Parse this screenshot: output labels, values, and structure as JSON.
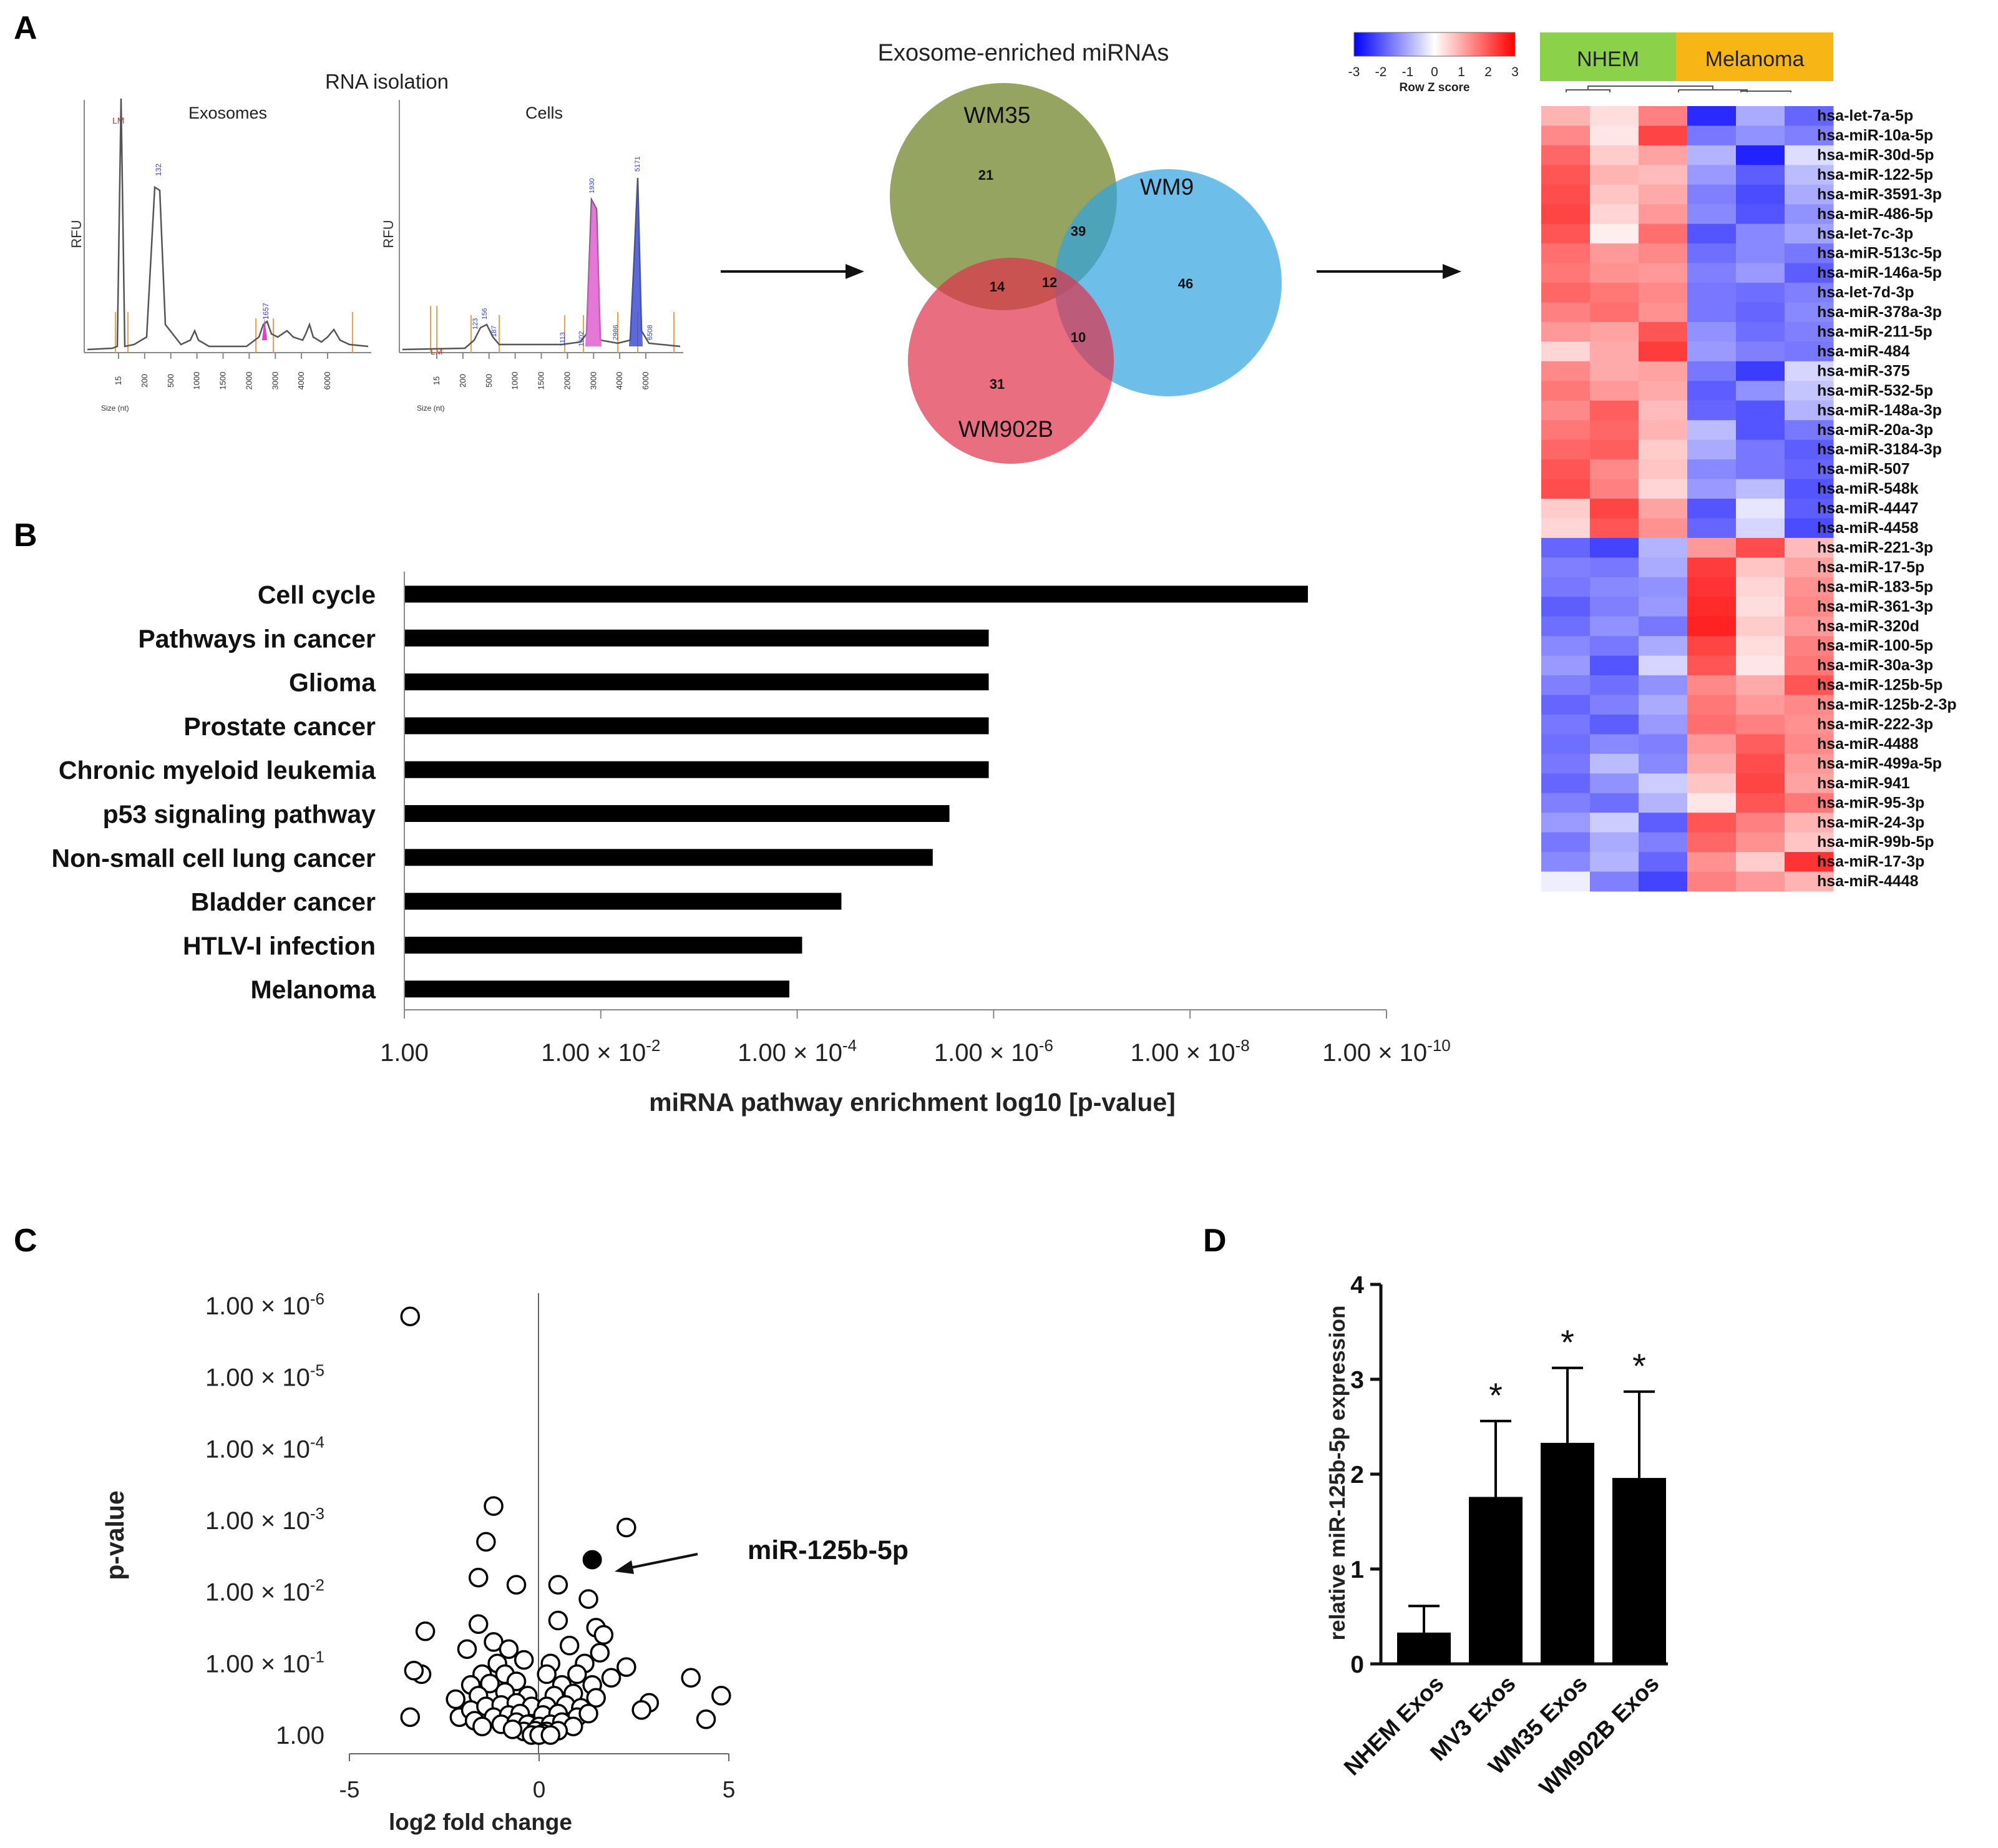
{
  "panel_labels": {
    "a": "A",
    "b": "B",
    "c": "C",
    "d": "D"
  },
  "panel_a": {
    "rna_title": "RNA isolation",
    "exosomes": {
      "title": "Exosomes",
      "ylabel": "RFU",
      "xlabel": "Size (nt)",
      "ladder_label": "LM",
      "x_ticks": [
        "15",
        "200",
        "500",
        "1000",
        "1500",
        "2000",
        "3000",
        "4000",
        "6000"
      ],
      "peak_labels": [
        "132",
        "1657"
      ]
    },
    "cells": {
      "title": "Cells",
      "ylabel": "RFU",
      "xlabel": "Size (nt)",
      "ladder_label": "LM",
      "x_ticks": [
        "15",
        "200",
        "500",
        "1000",
        "1500",
        "2000",
        "3000",
        "4000",
        "6000"
      ],
      "peak_labels": [
        "123",
        "156",
        "187",
        "1113",
        "1602",
        "1930",
        "2986",
        "5171",
        "6508"
      ]
    },
    "venn": {
      "title": "Exosome-enriched miRNAs",
      "sets": [
        {
          "name": "WM35",
          "color": "#7a8f3a"
        },
        {
          "name": "WM9",
          "color": "#2fa3e0"
        },
        {
          "name": "WM902B",
          "color": "#e0304a"
        }
      ],
      "counts": {
        "wm35_only": "21",
        "wm9_only": "46",
        "wm902b_only": "31",
        "wm35_wm9": "39",
        "wm35_wm902b": "14",
        "all": "12",
        "wm9_wm902b": "10"
      }
    },
    "heatmap": {
      "legend_title": "Row Z score",
      "legend_ticks": [
        "-3",
        "-2",
        "-1",
        "0",
        "1",
        "2",
        "3"
      ],
      "groups": [
        {
          "name": "NHEM",
          "color": "#8cd14a"
        },
        {
          "name": "Melanoma",
          "color": "#f7b516"
        }
      ],
      "rows": [
        {
          "name": "hsa-let-7a-5p",
          "z": [
            0.9,
            0.4,
            1.5,
            -2.5,
            -1.0,
            -1.8
          ]
        },
        {
          "name": "hsa-miR-10a-5p",
          "z": [
            1.4,
            0.3,
            2.2,
            -1.6,
            -1.3,
            -1.5
          ]
        },
        {
          "name": "hsa-miR-30d-5p",
          "z": [
            1.8,
            0.6,
            1.1,
            -0.9,
            -2.6,
            -0.4
          ]
        },
        {
          "name": "hsa-miR-122-5p",
          "z": [
            2.0,
            0.9,
            0.8,
            -1.2,
            -1.9,
            -0.8
          ]
        },
        {
          "name": "hsa-miR-3591-3p",
          "z": [
            2.1,
            0.7,
            1.0,
            -1.5,
            -2.1,
            -1.0
          ]
        },
        {
          "name": "hsa-miR-486-5p",
          "z": [
            2.2,
            0.5,
            1.2,
            -1.4,
            -2.0,
            -1.3
          ]
        },
        {
          "name": "hsa-let-7c-3p",
          "z": [
            2.0,
            0.2,
            1.7,
            -2.0,
            -1.4,
            -1.1
          ]
        },
        {
          "name": "hsa-miR-513c-5p",
          "z": [
            1.7,
            1.2,
            1.4,
            -1.7,
            -1.4,
            -1.6
          ]
        },
        {
          "name": "hsa-miR-146a-5p",
          "z": [
            1.6,
            1.3,
            1.2,
            -1.5,
            -1.2,
            -1.9
          ]
        },
        {
          "name": "hsa-let-7d-3p",
          "z": [
            1.8,
            1.6,
            1.4,
            -1.6,
            -1.7,
            -1.5
          ]
        },
        {
          "name": "hsa-miR-378a-3p",
          "z": [
            1.5,
            1.7,
            1.3,
            -1.6,
            -1.8,
            -1.4
          ]
        },
        {
          "name": "hsa-miR-211-5p",
          "z": [
            1.2,
            1.1,
            2.0,
            -1.3,
            -1.7,
            -1.5
          ]
        },
        {
          "name": "hsa-miR-484",
          "z": [
            0.5,
            1.0,
            2.3,
            -1.2,
            -1.5,
            -1.6
          ]
        },
        {
          "name": "hsa-miR-375",
          "z": [
            1.4,
            1.0,
            1.1,
            -1.6,
            -2.3,
            -0.5
          ]
        },
        {
          "name": "hsa-miR-532-5p",
          "z": [
            1.6,
            1.2,
            1.0,
            -1.9,
            -1.3,
            -0.7
          ]
        },
        {
          "name": "hsa-miR-148a-3p",
          "z": [
            1.4,
            1.9,
            0.8,
            -1.8,
            -2.0,
            -0.9
          ]
        },
        {
          "name": "hsa-miR-20a-3p",
          "z": [
            1.6,
            1.8,
            0.9,
            -0.8,
            -2.0,
            -1.6
          ]
        },
        {
          "name": "hsa-miR-3184-3p",
          "z": [
            1.8,
            1.9,
            0.6,
            -1.0,
            -1.6,
            -1.9
          ]
        },
        {
          "name": "hsa-miR-507",
          "z": [
            2.0,
            1.4,
            0.7,
            -1.4,
            -1.6,
            -1.8
          ]
        },
        {
          "name": "hsa-miR-548k",
          "z": [
            2.1,
            1.5,
            0.5,
            -1.2,
            -0.8,
            -2.0
          ]
        },
        {
          "name": "hsa-miR-4447",
          "z": [
            0.6,
            2.2,
            1.1,
            -2.0,
            -0.3,
            -1.9
          ]
        },
        {
          "name": "hsa-miR-4458",
          "z": [
            0.5,
            2.0,
            1.3,
            -1.8,
            -0.5,
            -2.1
          ]
        },
        {
          "name": "hsa-miR-221-3p",
          "z": [
            -1.8,
            -2.2,
            -0.9,
            1.2,
            2.1,
            0.8
          ]
        },
        {
          "name": "hsa-miR-17-5p",
          "z": [
            -1.5,
            -1.6,
            -1.0,
            2.3,
            0.7,
            1.1
          ]
        },
        {
          "name": "hsa-miR-183-5p",
          "z": [
            -1.6,
            -1.4,
            -1.3,
            2.4,
            0.5,
            1.3
          ]
        },
        {
          "name": "hsa-miR-361-3p",
          "z": [
            -1.9,
            -1.5,
            -1.2,
            2.5,
            0.4,
            1.4
          ]
        },
        {
          "name": "hsa-miR-320d",
          "z": [
            -1.7,
            -1.3,
            -1.6,
            2.6,
            0.6,
            1.2
          ]
        },
        {
          "name": "hsa-miR-100-5p",
          "z": [
            -1.4,
            -1.6,
            -1.0,
            2.2,
            0.4,
            1.5
          ]
        },
        {
          "name": "hsa-miR-30a-3p",
          "z": [
            -1.2,
            -2.0,
            -0.5,
            2.0,
            0.3,
            1.6
          ]
        },
        {
          "name": "hsa-miR-125b-5p",
          "z": [
            -1.5,
            -1.7,
            -1.3,
            1.4,
            1.0,
            2.0
          ]
        },
        {
          "name": "hsa-miR-125b-2-3p",
          "z": [
            -1.8,
            -1.5,
            -1.0,
            1.6,
            1.2,
            1.4
          ]
        },
        {
          "name": "hsa-miR-222-3p",
          "z": [
            -1.6,
            -1.9,
            -1.2,
            1.7,
            1.5,
            1.3
          ]
        },
        {
          "name": "hsa-miR-4488",
          "z": [
            -1.7,
            -1.4,
            -1.5,
            1.2,
            1.9,
            1.4
          ]
        },
        {
          "name": "hsa-miR-499a-5p",
          "z": [
            -1.6,
            -0.8,
            -1.4,
            1.0,
            2.1,
            1.2
          ]
        },
        {
          "name": "hsa-miR-941",
          "z": [
            -1.8,
            -1.3,
            -0.6,
            0.7,
            2.2,
            1.1
          ]
        },
        {
          "name": "hsa-miR-95-3p",
          "z": [
            -1.5,
            -1.7,
            -0.9,
            0.3,
            2.0,
            1.6
          ]
        },
        {
          "name": "hsa-miR-24-3p",
          "z": [
            -1.2,
            -0.6,
            -1.9,
            2.0,
            1.5,
            0.9
          ]
        },
        {
          "name": "hsa-miR-99b-5p",
          "z": [
            -1.6,
            -1.0,
            -1.5,
            1.8,
            1.3,
            0.7
          ]
        },
        {
          "name": "hsa-miR-17-3p",
          "z": [
            -1.4,
            -0.9,
            -1.8,
            1.3,
            0.6,
            2.4
          ]
        },
        {
          "name": "hsa-miR-4448",
          "z": [
            -0.2,
            -1.5,
            -2.2,
            1.5,
            1.2,
            0.9
          ]
        }
      ]
    }
  },
  "chart_data": [
    {
      "id": "B",
      "type": "bar",
      "orientation": "horizontal",
      "xscale": "log",
      "xlabel": "miRNA pathway enrichment log10 [p-value]",
      "x_ticks": [
        {
          "base": "1.00",
          "exp": ""
        },
        {
          "base": "1.00 × 10",
          "exp": "-2"
        },
        {
          "base": "1.00 × 10",
          "exp": "-4"
        },
        {
          "base": "1.00 × 10",
          "exp": "-6"
        },
        {
          "base": "1.00 × 10",
          "exp": "-8"
        },
        {
          "base": "1.00 × 10",
          "exp": "-10"
        }
      ],
      "xlim": [
        0,
        10
      ],
      "categories": [
        "Cell cycle",
        "Pathways in cancer",
        "Glioma",
        "Prostate cancer",
        "Chronic myeloid leukemia",
        "p53 signaling pathway",
        "Non-small cell lung cancer",
        "Bladder cancer",
        "HTLV-I infection",
        "Melanoma"
      ],
      "values": [
        9.2,
        5.95,
        5.95,
        5.95,
        5.95,
        5.55,
        5.38,
        4.45,
        4.05,
        3.92
      ],
      "value_unit": "-log10(p-value)"
    },
    {
      "id": "C",
      "type": "scatter",
      "xlabel": "log2 fold change",
      "ylabel": "p-value",
      "xlim": [
        -5,
        5
      ],
      "x_ticks": [
        "-5",
        "0",
        "5"
      ],
      "y_ticks": [
        {
          "base": "1.00",
          "exp": ""
        },
        {
          "base": "1.00 × 10",
          "exp": "-1"
        },
        {
          "base": "1.00 × 10",
          "exp": "-2"
        },
        {
          "base": "1.00 × 10",
          "exp": "-3"
        },
        {
          "base": "1.00 × 10",
          "exp": "-4"
        },
        {
          "base": "1.00 × 10",
          "exp": "-5"
        },
        {
          "base": "1.00 × 10",
          "exp": "-6"
        }
      ],
      "ylim": [
        0,
        6
      ],
      "y_unit": "-log10(p-value)",
      "annotation": "miR-125b-5p",
      "highlight": {
        "x": 1.4,
        "y": 2.45
      },
      "points": [
        [
          -3.4,
          5.85
        ],
        [
          -1.2,
          3.2
        ],
        [
          -1.4,
          2.7
        ],
        [
          2.3,
          2.9
        ],
        [
          -1.6,
          2.2
        ],
        [
          -0.6,
          2.1
        ],
        [
          0.5,
          2.1
        ],
        [
          1.3,
          1.9
        ],
        [
          -1.6,
          1.55
        ],
        [
          1.5,
          1.5
        ],
        [
          0.5,
          1.6
        ],
        [
          1.7,
          1.4
        ],
        [
          -3.0,
          1.45
        ],
        [
          -1.9,
          1.2
        ],
        [
          -1.2,
          1.3
        ],
        [
          -0.8,
          1.2
        ],
        [
          0.8,
          1.25
        ],
        [
          1.6,
          1.15
        ],
        [
          -1.1,
          1.0
        ],
        [
          -0.4,
          1.05
        ],
        [
          0.3,
          1.0
        ],
        [
          1.2,
          1.0
        ],
        [
          2.3,
          0.95
        ],
        [
          -3.1,
          0.85
        ],
        [
          -3.3,
          0.9
        ],
        [
          -1.5,
          0.85
        ],
        [
          -0.9,
          0.85
        ],
        [
          0.2,
          0.85
        ],
        [
          1.0,
          0.85
        ],
        [
          1.9,
          0.8
        ],
        [
          4.0,
          0.8
        ],
        [
          4.8,
          0.55
        ],
        [
          -1.8,
          0.7
        ],
        [
          -1.3,
          0.72
        ],
        [
          -0.6,
          0.75
        ],
        [
          0.6,
          0.7
        ],
        [
          1.4,
          0.7
        ],
        [
          2.9,
          0.45
        ],
        [
          2.7,
          0.35
        ],
        [
          -2.2,
          0.5
        ],
        [
          -1.6,
          0.55
        ],
        [
          -0.9,
          0.6
        ],
        [
          -0.3,
          0.55
        ],
        [
          0.4,
          0.55
        ],
        [
          0.9,
          0.58
        ],
        [
          1.5,
          0.52
        ],
        [
          -3.4,
          0.25
        ],
        [
          -2.1,
          0.25
        ],
        [
          -1.8,
          0.35
        ],
        [
          -1.4,
          0.4
        ],
        [
          -1.0,
          0.42
        ],
        [
          -0.6,
          0.45
        ],
        [
          -0.2,
          0.4
        ],
        [
          0.2,
          0.4
        ],
        [
          0.7,
          0.42
        ],
        [
          1.1,
          0.38
        ],
        [
          4.4,
          0.22
        ],
        [
          -1.7,
          0.2
        ],
        [
          -1.2,
          0.25
        ],
        [
          -0.8,
          0.28
        ],
        [
          -0.5,
          0.3
        ],
        [
          0.1,
          0.28
        ],
        [
          0.5,
          0.3
        ],
        [
          1.0,
          0.25
        ],
        [
          1.3,
          0.3
        ],
        [
          -1.5,
          0.12
        ],
        [
          -1.0,
          0.15
        ],
        [
          -0.6,
          0.18
        ],
        [
          -0.3,
          0.15
        ],
        [
          0.0,
          0.12
        ],
        [
          0.3,
          0.15
        ],
        [
          0.6,
          0.18
        ],
        [
          0.9,
          0.12
        ],
        [
          -0.4,
          0.05
        ],
        [
          -0.1,
          0.06
        ],
        [
          0.2,
          0.05
        ],
        [
          0.5,
          0.06
        ],
        [
          -0.7,
          0.08
        ],
        [
          0.1,
          0.02
        ],
        [
          -0.2,
          0.0
        ],
        [
          0.0,
          0.0
        ],
        [
          0.3,
          0.0
        ]
      ]
    },
    {
      "id": "D",
      "type": "bar",
      "ylabel": "relative miR-125b-5p expression",
      "ylim": [
        0,
        4
      ],
      "y_ticks": [
        "0",
        "1",
        "2",
        "3",
        "4"
      ],
      "categories": [
        "NHEM Exos",
        "MV3 Exos",
        "WM35 Exos",
        "WM902B Exos"
      ],
      "values": [
        0.33,
        1.76,
        2.33,
        1.96
      ],
      "errors": [
        0.28,
        0.8,
        0.79,
        0.91
      ],
      "significance": [
        "",
        "*",
        "*",
        "*"
      ]
    }
  ]
}
